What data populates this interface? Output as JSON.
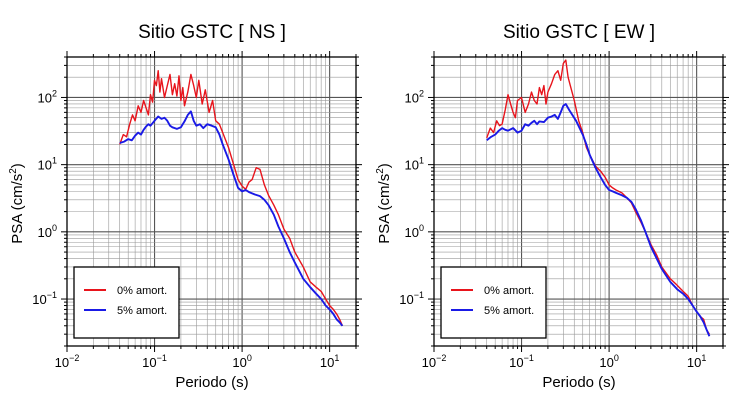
{
  "chart_data": [
    {
      "type": "line",
      "title": "Sitio GSTC [ NS ]",
      "xlabel": "Periodo (s)",
      "ylabel": "PSA (cm/s²)",
      "ylabel_main": "PSA (cm/s",
      "ylabel_sup": "2",
      "ylabel_end": ")",
      "xscale": "log",
      "yscale": "log",
      "xlim": [
        0.01,
        20
      ],
      "ylim": [
        0.02,
        400
      ],
      "grid": true,
      "legend_position": "bottom-left",
      "xticks": [
        {
          "base": "10",
          "exp": "−2",
          "value": 0.01
        },
        {
          "base": "10",
          "exp": "−1",
          "value": 0.1
        },
        {
          "base": "10",
          "exp": "0",
          "value": 1
        },
        {
          "base": "10",
          "exp": "1",
          "value": 10
        }
      ],
      "yticks": [
        {
          "base": "10",
          "exp": "−1",
          "value": 0.1
        },
        {
          "base": "10",
          "exp": "0",
          "value": 1
        },
        {
          "base": "10",
          "exp": "1",
          "value": 10
        },
        {
          "base": "10",
          "exp": "2",
          "value": 100
        }
      ],
      "series": [
        {
          "name": "0% amort.",
          "color": "#e8141c",
          "x": [
            0.04,
            0.044,
            0.048,
            0.052,
            0.056,
            0.06,
            0.065,
            0.07,
            0.075,
            0.08,
            0.085,
            0.09,
            0.095,
            0.1,
            0.105,
            0.11,
            0.115,
            0.12,
            0.13,
            0.14,
            0.15,
            0.16,
            0.17,
            0.18,
            0.19,
            0.2,
            0.21,
            0.22,
            0.24,
            0.26,
            0.28,
            0.3,
            0.32,
            0.35,
            0.38,
            0.42,
            0.46,
            0.5,
            0.55,
            0.6,
            0.7,
            0.8,
            0.9,
            1.0,
            1.1,
            1.2,
            1.3,
            1.45,
            1.6,
            1.8,
            2.0,
            2.3,
            2.6,
            3.0,
            3.5,
            4.0,
            5.0,
            6.0,
            7.0,
            8.0,
            9.0,
            10.0,
            11.0,
            12.0,
            13.0,
            14.0
          ],
          "y": [
            20,
            28,
            26,
            40,
            55,
            45,
            75,
            60,
            90,
            70,
            55,
            110,
            85,
            180,
            150,
            250,
            120,
            190,
            100,
            150,
            220,
            110,
            160,
            105,
            210,
            90,
            140,
            75,
            120,
            220,
            150,
            100,
            180,
            80,
            130,
            60,
            90,
            45,
            40,
            30,
            18,
            10,
            6,
            4.8,
            4.3,
            5.5,
            6.0,
            9.0,
            8.5,
            5.0,
            3.5,
            2.5,
            1.8,
            1.1,
            0.8,
            0.5,
            0.3,
            0.18,
            0.15,
            0.13,
            0.1,
            0.08,
            0.07,
            0.06,
            0.05,
            0.04
          ]
        },
        {
          "name": "5% amort.",
          "color": "#1a1ae6",
          "x": [
            0.04,
            0.045,
            0.05,
            0.055,
            0.06,
            0.065,
            0.07,
            0.075,
            0.08,
            0.085,
            0.09,
            0.1,
            0.11,
            0.12,
            0.13,
            0.14,
            0.15,
            0.16,
            0.18,
            0.2,
            0.22,
            0.24,
            0.26,
            0.28,
            0.3,
            0.33,
            0.36,
            0.4,
            0.45,
            0.5,
            0.55,
            0.6,
            0.7,
            0.8,
            0.9,
            1.0,
            1.1,
            1.2,
            1.4,
            1.6,
            1.8,
            2.0,
            2.3,
            2.6,
            3.0,
            3.5,
            4.0,
            5.0,
            6.0,
            7.0,
            8.0,
            9.0,
            10.0,
            11.0,
            12.0,
            13.0,
            14.0
          ],
          "y": [
            21,
            22,
            24,
            23,
            27,
            30,
            28,
            33,
            37,
            40,
            38,
            45,
            52,
            48,
            50,
            45,
            38,
            36,
            34,
            36,
            44,
            55,
            62,
            45,
            38,
            40,
            35,
            40,
            38,
            36,
            28,
            20,
            12,
            7,
            4.5,
            4.0,
            4.2,
            3.9,
            3.6,
            3.4,
            3.0,
            2.5,
            1.8,
            1.2,
            0.8,
            0.5,
            0.35,
            0.2,
            0.15,
            0.12,
            0.1,
            0.08,
            0.07,
            0.06,
            0.05,
            0.045,
            0.04
          ]
        }
      ]
    },
    {
      "type": "line",
      "title": "Sitio GSTC [ EW ]",
      "xlabel": "Periodo (s)",
      "ylabel": "PSA (cm/s²)",
      "ylabel_main": "PSA (cm/s",
      "ylabel_sup": "2",
      "ylabel_end": ")",
      "xscale": "log",
      "yscale": "log",
      "xlim": [
        0.01,
        20
      ],
      "ylim": [
        0.02,
        400
      ],
      "grid": true,
      "legend_position": "bottom-left",
      "xticks": [
        {
          "base": "10",
          "exp": "−2",
          "value": 0.01
        },
        {
          "base": "10",
          "exp": "−1",
          "value": 0.1
        },
        {
          "base": "10",
          "exp": "0",
          "value": 1
        },
        {
          "base": "10",
          "exp": "1",
          "value": 10
        }
      ],
      "yticks": [
        {
          "base": "10",
          "exp": "−1",
          "value": 0.1
        },
        {
          "base": "10",
          "exp": "0",
          "value": 1
        },
        {
          "base": "10",
          "exp": "1",
          "value": 10
        },
        {
          "base": "10",
          "exp": "2",
          "value": 100
        }
      ],
      "series": [
        {
          "name": "0% amort.",
          "color": "#e8141c",
          "x": [
            0.04,
            0.044,
            0.048,
            0.052,
            0.056,
            0.06,
            0.065,
            0.07,
            0.075,
            0.08,
            0.085,
            0.09,
            0.1,
            0.11,
            0.12,
            0.13,
            0.14,
            0.15,
            0.16,
            0.17,
            0.18,
            0.19,
            0.2,
            0.22,
            0.24,
            0.26,
            0.28,
            0.3,
            0.32,
            0.34,
            0.36,
            0.4,
            0.45,
            0.5,
            0.55,
            0.6,
            0.7,
            0.8,
            0.9,
            1.0,
            1.1,
            1.2,
            1.4,
            1.6,
            1.8,
            2.0,
            2.3,
            2.6,
            3.0,
            3.5,
            4.0,
            5.0,
            6.0,
            7.0,
            8.0,
            9.0,
            10.0,
            11.0,
            12.0,
            13.0,
            14.0
          ],
          "y": [
            25,
            35,
            30,
            45,
            38,
            40,
            65,
            110,
            80,
            60,
            50,
            90,
            100,
            60,
            80,
            120,
            90,
            80,
            140,
            110,
            150,
            80,
            120,
            160,
            220,
            250,
            180,
            320,
            360,
            200,
            150,
            90,
            45,
            30,
            18,
            14,
            9.5,
            8.0,
            6.5,
            5.0,
            4.5,
            4.2,
            3.8,
            3.2,
            2.7,
            2.0,
            1.4,
            1.0,
            0.65,
            0.45,
            0.3,
            0.2,
            0.16,
            0.13,
            0.11,
            0.08,
            0.065,
            0.055,
            0.05,
            0.035,
            0.03
          ]
        },
        {
          "name": "5% amort.",
          "color": "#1a1ae6",
          "x": [
            0.04,
            0.045,
            0.05,
            0.055,
            0.06,
            0.065,
            0.07,
            0.08,
            0.09,
            0.1,
            0.11,
            0.12,
            0.13,
            0.14,
            0.15,
            0.16,
            0.18,
            0.2,
            0.22,
            0.24,
            0.26,
            0.28,
            0.3,
            0.32,
            0.35,
            0.38,
            0.42,
            0.46,
            0.5,
            0.55,
            0.6,
            0.7,
            0.8,
            0.9,
            1.0,
            1.1,
            1.2,
            1.4,
            1.6,
            1.8,
            2.0,
            2.3,
            2.6,
            3.0,
            3.5,
            4.0,
            5.0,
            6.0,
            7.0,
            8.0,
            9.0,
            10.0,
            11.0,
            12.0,
            13.0,
            14.0
          ],
          "y": [
            23,
            26,
            28,
            32,
            35,
            33,
            32,
            35,
            30,
            32,
            40,
            38,
            42,
            45,
            40,
            44,
            43,
            50,
            52,
            55,
            48,
            60,
            75,
            80,
            65,
            55,
            45,
            35,
            28,
            20,
            14,
            9,
            6.5,
            5.0,
            4.2,
            4.0,
            3.8,
            3.5,
            3.2,
            2.8,
            2.2,
            1.5,
            1.0,
            0.6,
            0.4,
            0.28,
            0.18,
            0.14,
            0.12,
            0.1,
            0.08,
            0.065,
            0.055,
            0.045,
            0.035,
            0.028
          ]
        }
      ]
    }
  ]
}
